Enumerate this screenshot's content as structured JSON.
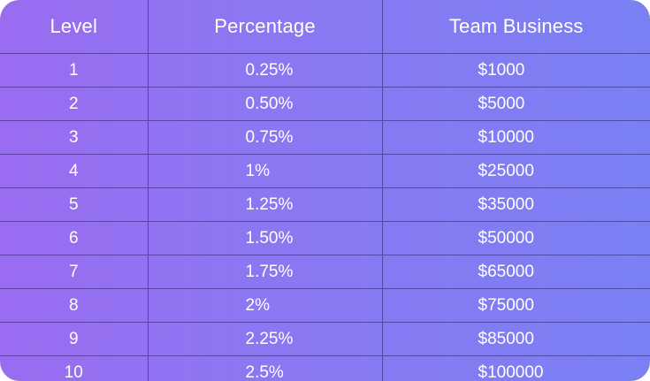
{
  "table": {
    "headers": [
      "Level",
      "Percentage",
      "Team Business"
    ],
    "rows": [
      {
        "level": "1",
        "percentage": "0.25%",
        "team_business": "$1000"
      },
      {
        "level": "2",
        "percentage": "0.50%",
        "team_business": "$5000"
      },
      {
        "level": "3",
        "percentage": "0.75%",
        "team_business": "$10000"
      },
      {
        "level": "4",
        "percentage": "1%",
        "team_business": "$25000"
      },
      {
        "level": "5",
        "percentage": "1.25%",
        "team_business": "$35000"
      },
      {
        "level": "6",
        "percentage": "1.50%",
        "team_business": "$50000"
      },
      {
        "level": "7",
        "percentage": "1.75%",
        "team_business": "$65000"
      },
      {
        "level": "8",
        "percentage": "2%",
        "team_business": "$75000"
      },
      {
        "level": "9",
        "percentage": "2.25%",
        "team_business": "$85000"
      },
      {
        "level": "10",
        "percentage": "2.5%",
        "team_business": "$100000"
      }
    ]
  },
  "colors": {
    "gradient_start": "#9a6cf1",
    "gradient_end": "#7a80f4",
    "text": "#ffffff",
    "grid_line": "#281e6e"
  }
}
